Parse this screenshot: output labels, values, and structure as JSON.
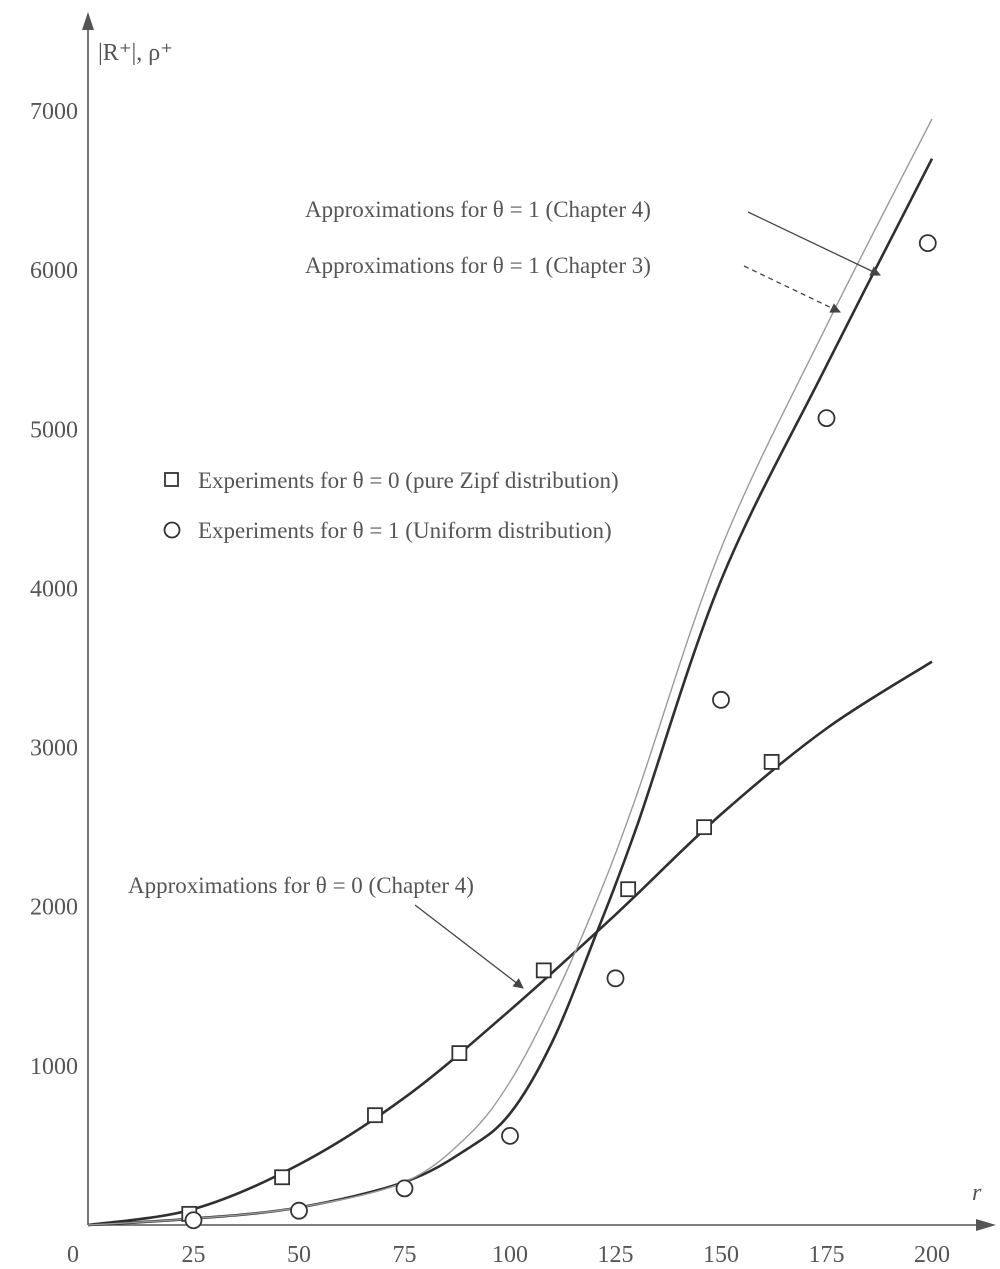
{
  "chart_data": {
    "type": "line",
    "ylabel": "|R⁺|, ρ⁺",
    "xlabel": "r",
    "xlim": [
      0,
      200
    ],
    "ylim": [
      0,
      7000
    ],
    "x_ticks": [
      "0",
      "25",
      "50",
      "75",
      "100",
      "125",
      "150",
      "175",
      "200"
    ],
    "y_ticks": [
      "1000",
      "2000",
      "3000",
      "4000",
      "5000",
      "6000",
      "7000"
    ],
    "grid": false,
    "legend_position": "center-left",
    "legend": [
      {
        "label": "Experiments for  θ = 0  (pure Zipf distribution)",
        "marker": "square"
      },
      {
        "label": "Experiments for  θ = 1  (Uniform distribution)",
        "marker": "circle"
      }
    ],
    "annotations": [
      {
        "text": "Approximations for  θ = 1  (Chapter 4)",
        "target": "theta1_ch4",
        "style": "solid"
      },
      {
        "text": "Approximations for  θ = 1  (Chapter 3)",
        "target": "theta1_ch3",
        "style": "dashed"
      },
      {
        "text": "Approximations for  θ = 0  (Chapter 4)",
        "target": "theta0_ch4",
        "style": "solid"
      }
    ],
    "series": [
      {
        "id": "theta0_ch4",
        "kind": "line",
        "x": [
          0,
          25,
          50,
          75,
          100,
          125,
          150,
          175,
          200
        ],
        "y": [
          0,
          100,
          380,
          800,
          1350,
          1950,
          2580,
          3120,
          3540
        ]
      },
      {
        "id": "theta1_ch4",
        "kind": "line",
        "x": [
          0,
          25,
          50,
          75,
          90,
          100,
          110,
          120,
          130,
          150,
          175,
          200
        ],
        "y": [
          0,
          40,
          110,
          270,
          480,
          700,
          1150,
          1800,
          2500,
          4050,
          5400,
          6700
        ]
      },
      {
        "id": "theta1_ch3",
        "kind": "line",
        "x": [
          0,
          25,
          50,
          75,
          90,
          100,
          110,
          120,
          130,
          150,
          175,
          200
        ],
        "y": [
          0,
          40,
          110,
          270,
          560,
          900,
          1400,
          2000,
          2700,
          4250,
          5650,
          6950
        ]
      },
      {
        "id": "theta0_experiments",
        "kind": "scatter",
        "marker": "square",
        "x": [
          24,
          46,
          68,
          88,
          108,
          128,
          146,
          162
        ],
        "y": [
          70,
          300,
          690,
          1080,
          1600,
          2110,
          2500,
          2910
        ]
      },
      {
        "id": "theta1_experiments",
        "kind": "scatter",
        "marker": "circle",
        "x": [
          25,
          50,
          75,
          100,
          125,
          150,
          175,
          199
        ],
        "y": [
          30,
          90,
          230,
          560,
          1550,
          3300,
          5070,
          6170
        ]
      }
    ]
  }
}
